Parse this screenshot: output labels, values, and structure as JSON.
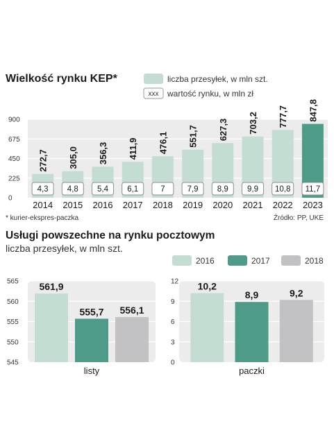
{
  "colors": {
    "light": "#c4ddd3",
    "dark": "#4e9b8a",
    "grey": "#c2c2c4",
    "panel": "#ececec",
    "grid": "#ffffff"
  },
  "chart_data": [
    {
      "type": "bar",
      "title": "Wielkość rynku KEP*",
      "legend": {
        "bar_label": "liczba przesyłek, w mln szt.",
        "box_label": "wartość rynku, w mln zł",
        "box_sample": "xxx",
        "position": "top-right"
      },
      "categories": [
        "2014",
        "2015",
        "2016",
        "2017",
        "2018",
        "2019",
        "2020",
        "2021",
        "2022",
        "2023"
      ],
      "series": [
        {
          "values": [
            272.7,
            305.0,
            356.3,
            411.9,
            476.1,
            551.7,
            627.3,
            703.2,
            777.7,
            847.8
          ]
        }
      ],
      "value_labels": [
        "272,7",
        "305,0",
        "356,3",
        "411,9",
        "476,1",
        "551,7",
        "627,3",
        "703,2",
        "777,7",
        "847,8"
      ],
      "secondary_values": [
        4.3,
        4.8,
        5.4,
        6.1,
        7,
        7.9,
        8.9,
        9.9,
        10.8,
        11.7
      ],
      "secondary_labels": [
        "4,3",
        "4,8",
        "5,4",
        "6,1",
        "7",
        "7,9",
        "8,9",
        "9,9",
        "10,8",
        "11,7"
      ],
      "highlight_index": 9,
      "ylim": [
        0,
        900
      ],
      "yticks": [
        0,
        225,
        450,
        675,
        900
      ],
      "ytick_labels": [
        "0",
        "225",
        "450",
        "675",
        "900"
      ],
      "grid": true,
      "footnote": "* kurier-ekspres-paczka",
      "source": "Źródło: PP, UKE"
    },
    {
      "type": "bar",
      "title": "Usługi powszechne na rynku pocztowym",
      "subtitle": "liczba przesyłek, w mln szt.",
      "legend": {
        "entries": [
          "2016",
          "2017",
          "2018"
        ],
        "position": "top-right"
      },
      "panels": [
        {
          "category": "listy",
          "values": [
            561.9,
            555.7,
            556.1
          ],
          "value_labels": [
            "561,9",
            "555,7",
            "556,1"
          ],
          "ylim": [
            545,
            565
          ],
          "yticks": [
            545,
            550,
            555,
            560,
            565
          ],
          "ytick_labels": [
            "545",
            "550",
            "555",
            "560",
            "565"
          ]
        },
        {
          "category": "paczki",
          "values": [
            10.2,
            8.9,
            9.2
          ],
          "value_labels": [
            "10,2",
            "8,9",
            "9,2"
          ],
          "ylim": [
            0,
            12
          ],
          "yticks": [
            0,
            3,
            6,
            9,
            12
          ],
          "ytick_labels": [
            "0",
            "3",
            "6",
            "9",
            "12"
          ]
        }
      ],
      "grid": true
    }
  ]
}
